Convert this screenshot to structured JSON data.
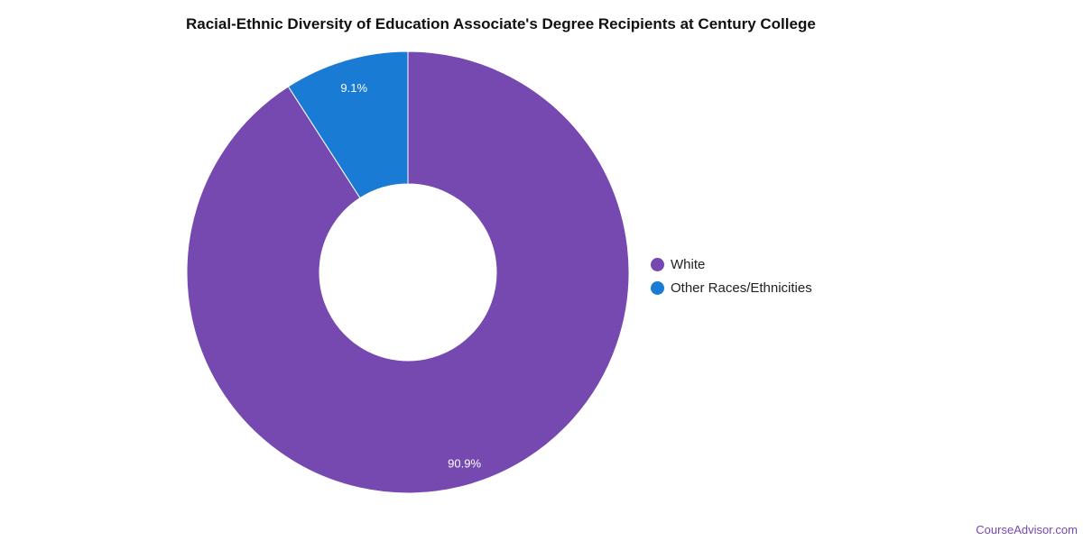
{
  "chart_data": {
    "type": "pie",
    "style": "donut",
    "title": "Racial-Ethnic Diversity of Education Associate's Degree Recipients at Century College",
    "categories": [
      "White",
      "Other Races/Ethnicities"
    ],
    "values": [
      90.9,
      9.1
    ],
    "data_labels": [
      "90.9%",
      "9.1%"
    ],
    "colors": [
      "#7549b0",
      "#1a7bd4"
    ],
    "legend_position": "right"
  },
  "watermark": "CourseAdvisor.com"
}
